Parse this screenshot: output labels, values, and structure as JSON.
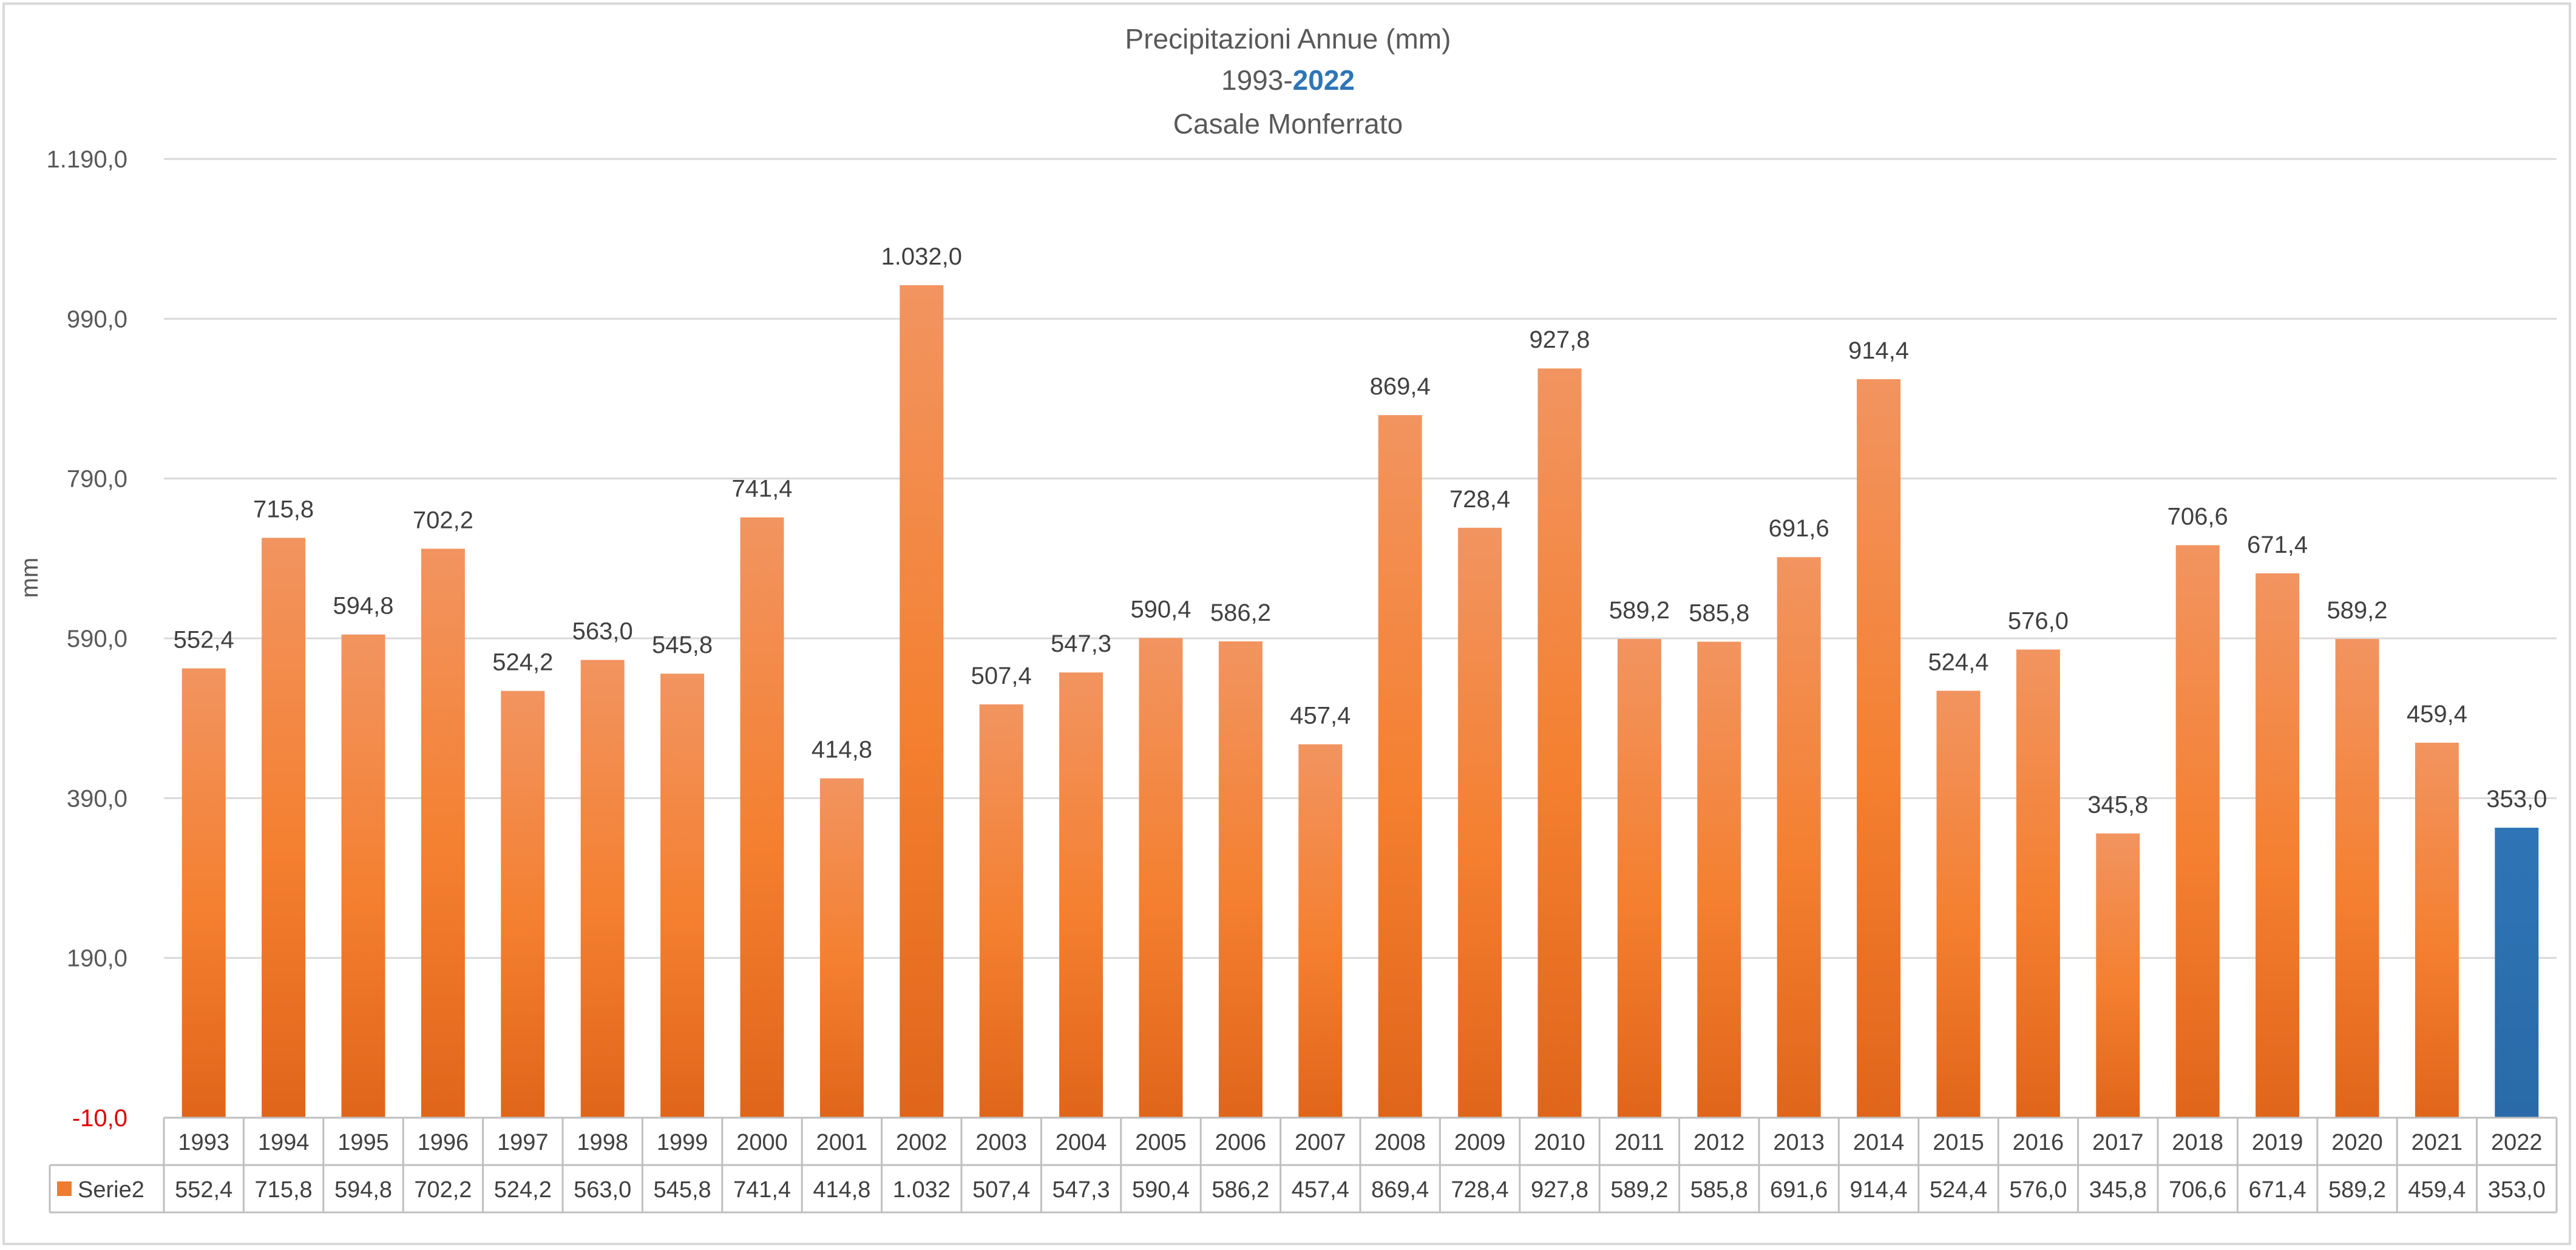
{
  "chart_data": {
    "type": "bar",
    "title": "Precipitazioni Annue (mm)",
    "subtitle_prefix": "1993-",
    "subtitle_accent": "2022",
    "subtitle2": "Casale Monferrato",
    "ylabel": "mm",
    "ylim": [
      -10,
      1190
    ],
    "y_ticks": [
      -10,
      190,
      390,
      590,
      790,
      990,
      1190
    ],
    "y_tick_labels": [
      "-10,0",
      "190,0",
      "390,0",
      "590,0",
      "790,0",
      "990,0",
      "1.190,0"
    ],
    "grid": true,
    "legend": "bottom-left data table",
    "categories": [
      "1993",
      "1994",
      "1995",
      "1996",
      "1997",
      "1998",
      "1999",
      "2000",
      "2001",
      "2002",
      "2003",
      "2004",
      "2005",
      "2006",
      "2007",
      "2008",
      "2009",
      "2010",
      "2011",
      "2012",
      "2013",
      "2014",
      "2015",
      "2016",
      "2017",
      "2018",
      "2019",
      "2020",
      "2021",
      "2022"
    ],
    "series": [
      {
        "name": "Serie2",
        "color": "#ed7d31",
        "highlight_color": "#2e75b6",
        "values": [
          552.4,
          715.8,
          594.8,
          702.2,
          524.2,
          563.0,
          545.8,
          741.4,
          414.8,
          1032.0,
          507.4,
          547.3,
          590.4,
          586.2,
          457.4,
          869.4,
          728.4,
          927.8,
          589.2,
          585.8,
          691.6,
          914.4,
          524.4,
          576.0,
          345.8,
          706.6,
          671.4,
          589.2,
          459.4,
          353.0
        ],
        "data_labels": [
          "552,4",
          "715,8",
          "594,8",
          "702,2",
          "524,2",
          "563,0",
          "545,8",
          "741,4",
          "414,8",
          "1.032,0",
          "507,4",
          "547,3",
          "590,4",
          "586,2",
          "457,4",
          "869,4",
          "728,4",
          "927,8",
          "589,2",
          "585,8",
          "691,6",
          "914,4",
          "524,4",
          "576,0",
          "345,8",
          "706,6",
          "671,4",
          "589,2",
          "459,4",
          "353,0"
        ],
        "table_labels": [
          "552,4",
          "715,8",
          "594,8",
          "702,2",
          "524,2",
          "563,0",
          "545,8",
          "741,4",
          "414,8",
          "1.032",
          "507,4",
          "547,3",
          "590,4",
          "586,2",
          "457,4",
          "869,4",
          "728,4",
          "927,8",
          "589,2",
          "585,8",
          "691,6",
          "914,4",
          "524,4",
          "576,0",
          "345,8",
          "706,6",
          "671,4",
          "589,2",
          "459,4",
          "353,0"
        ]
      }
    ]
  }
}
